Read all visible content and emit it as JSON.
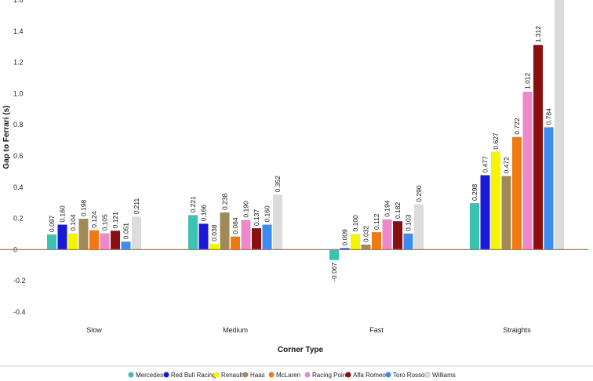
{
  "chart_data": {
    "type": "bar",
    "title": "",
    "xlabel": "Corner Type",
    "ylabel": "Gap to Ferrari (s)",
    "ylim": [
      -0.4,
      1.6
    ],
    "yticks": [
      "-0.4",
      "-0.2",
      "0",
      "0.2",
      "0.4",
      "0.6",
      "0.8",
      "1.0",
      "1.2",
      "1.4",
      "1.6"
    ],
    "categories": [
      "Slow",
      "Medium",
      "Fast",
      "Straights"
    ],
    "grid": false,
    "legend_position": "bottom",
    "series": [
      {
        "name": "Mercedes",
        "color": "#3cc2b0",
        "values": [
          0.097,
          0.221,
          -0.067,
          0.298
        ],
        "labels": [
          "0.097",
          "0.221",
          "-0.067",
          "0.298"
        ]
      },
      {
        "name": "Red Bull Racing",
        "color": "#1a1ad6",
        "values": [
          0.16,
          0.166,
          0.009,
          0.477
        ],
        "labels": [
          "0.160",
          "0.166",
          "0.009",
          "0.477"
        ]
      },
      {
        "name": "Renault",
        "color": "#f5f500",
        "values": [
          0.104,
          0.038,
          0.1,
          0.627
        ],
        "labels": [
          "0.104",
          "0.038",
          "0.100",
          "0.627"
        ]
      },
      {
        "name": "Haas",
        "color": "#a08a55",
        "values": [
          0.198,
          0.238,
          0.032,
          0.472
        ],
        "labels": [
          "0.198",
          "0.238",
          "0.032",
          "0.472"
        ]
      },
      {
        "name": "McLaren",
        "color": "#f07a12",
        "values": [
          0.124,
          0.084,
          0.112,
          0.722
        ],
        "labels": [
          "0.124",
          "0.084",
          "0.112",
          "0.722"
        ]
      },
      {
        "name": "Racing Point",
        "color": "#ee88c8",
        "values": [
          0.105,
          0.19,
          0.194,
          1.012
        ],
        "labels": [
          "0.105",
          "0.190",
          "0.194",
          "1.012"
        ]
      },
      {
        "name": "Alfa Romeo",
        "color": "#8a0f0f",
        "values": [
          0.121,
          0.137,
          0.182,
          1.312
        ],
        "labels": [
          "0.121",
          "0.137",
          "0.182",
          "1.312"
        ]
      },
      {
        "name": "Toro Rosso",
        "color": "#3a8ef0",
        "values": [
          0.051,
          0.16,
          0.103,
          0.784
        ],
        "labels": [
          "0.051",
          "0.160",
          "0.103",
          "0.784"
        ]
      },
      {
        "name": "Williams",
        "color": "#dcdcdc",
        "values": [
          0.211,
          0.352,
          0.29,
          1.7
        ],
        "labels": [
          "0.211",
          "0.352",
          "0.290",
          ""
        ]
      }
    ],
    "zero_line_color": "#e06060"
  }
}
